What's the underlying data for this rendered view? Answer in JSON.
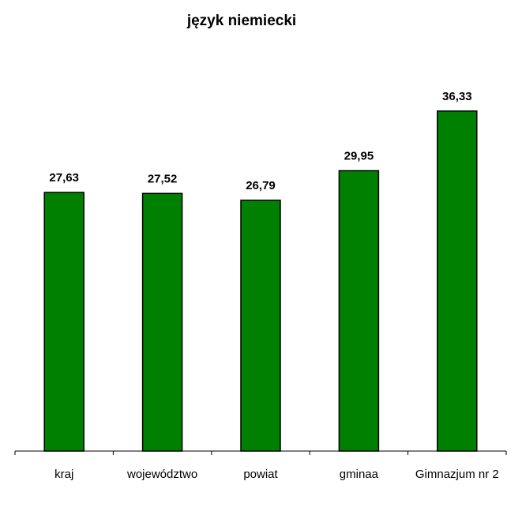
{
  "chart_data": {
    "type": "bar",
    "title": "język niemiecki",
    "categories": [
      "kraj",
      "województwo",
      "powiat",
      "gminaa",
      "Gimnazjum nr 2"
    ],
    "values": [
      27.63,
      27.52,
      26.79,
      29.95,
      36.33
    ],
    "value_labels": [
      "27,63",
      "27,52",
      "26,79",
      "29,95",
      "36,33"
    ],
    "xlabel": "",
    "ylabel": "",
    "ylim": [
      0,
      40
    ],
    "grid": false,
    "legend": "none",
    "bar_color": "#008000",
    "bar_stroke": "#000000"
  }
}
